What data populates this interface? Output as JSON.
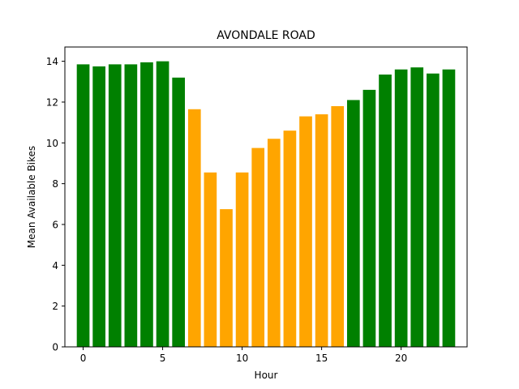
{
  "chart_data": {
    "type": "bar",
    "title": "AVONDALE ROAD",
    "xlabel": "Hour",
    "ylabel": "Mean Available Bikes",
    "x": [
      0,
      1,
      2,
      3,
      4,
      5,
      6,
      7,
      8,
      9,
      10,
      11,
      12,
      13,
      14,
      15,
      16,
      17,
      18,
      19,
      20,
      21,
      22,
      23
    ],
    "values": [
      13.85,
      13.75,
      13.85,
      13.85,
      13.95,
      14.0,
      13.2,
      11.65,
      8.55,
      6.75,
      8.55,
      9.75,
      10.2,
      10.6,
      11.3,
      11.4,
      11.8,
      12.1,
      12.6,
      13.35,
      13.6,
      13.7,
      13.4,
      13.6
    ],
    "bar_colors": [
      "green",
      "green",
      "green",
      "green",
      "green",
      "green",
      "green",
      "orange",
      "orange",
      "orange",
      "orange",
      "orange",
      "orange",
      "orange",
      "orange",
      "orange",
      "orange",
      "green",
      "green",
      "green",
      "green",
      "green",
      "green",
      "green"
    ],
    "colors": {
      "green": "#008000",
      "orange": "#ffa500"
    },
    "xlim": [
      -1.15,
      24.15
    ],
    "ylim": [
      0,
      14.7
    ],
    "xticks": [
      0,
      5,
      10,
      15,
      20
    ],
    "yticks": [
      0,
      2,
      4,
      6,
      8,
      10,
      12,
      14
    ],
    "grid": false,
    "legend": "none"
  }
}
